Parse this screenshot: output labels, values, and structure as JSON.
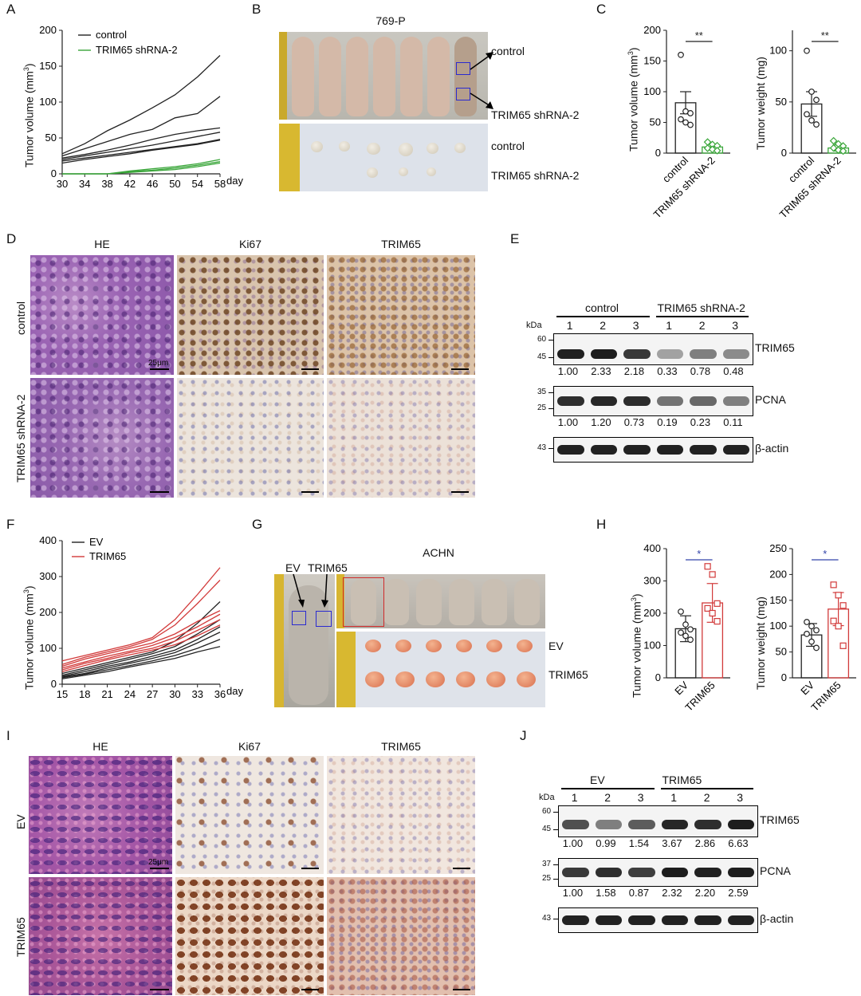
{
  "panels": {
    "A": "A",
    "B": "B",
    "C": "C",
    "D": "D",
    "E": "E",
    "F": "F",
    "G": "G",
    "H": "H",
    "I": "I",
    "J": "J"
  },
  "panelA": {
    "ylabel_main": "Tumor volume (mm",
    "ylabel_sup": "3",
    "ylabel_close": ")",
    "xunit": "day",
    "legend": [
      "control",
      "TRIM65 shRNA-2"
    ],
    "colors": {
      "control": "#222222",
      "shrna": "#3aa63a"
    },
    "yticks": [
      "0",
      "50",
      "100",
      "150",
      "200"
    ],
    "xticks": [
      "30",
      "34",
      "38",
      "42",
      "46",
      "50",
      "54",
      "58"
    ]
  },
  "chart_data": [
    {
      "type": "line",
      "panel": "A",
      "x": [
        30,
        34,
        38,
        42,
        46,
        50,
        54,
        58
      ],
      "xlabel": "day",
      "ylabel": "Tumor volume (mm3)",
      "ylim": [
        0,
        200
      ],
      "xlim": [
        30,
        58
      ],
      "series": [
        {
          "name": "control",
          "values": [
            28,
            42,
            60,
            75,
            92,
            110,
            135,
            165
          ]
        },
        {
          "name": "control",
          "values": [
            25,
            35,
            45,
            55,
            62,
            78,
            84,
            108
          ]
        },
        {
          "name": "control",
          "values": [
            22,
            27,
            33,
            40,
            48,
            55,
            60,
            64
          ]
        },
        {
          "name": "control",
          "values": [
            20,
            25,
            30,
            35,
            40,
            46,
            52,
            58
          ]
        },
        {
          "name": "control",
          "values": [
            18,
            22,
            26,
            30,
            34,
            38,
            42,
            48
          ]
        },
        {
          "name": "control",
          "values": [
            15,
            20,
            24,
            28,
            33,
            37,
            41,
            47
          ]
        },
        {
          "name": "TRIM65 shRNA-2",
          "values": [
            0,
            0,
            0,
            4,
            7,
            10,
            14,
            20
          ]
        },
        {
          "name": "TRIM65 shRNA-2",
          "values": [
            0,
            0,
            0,
            3,
            5,
            8,
            12,
            17
          ]
        },
        {
          "name": "TRIM65 shRNA-2",
          "values": [
            0,
            0,
            0,
            2,
            4,
            6,
            10,
            15
          ]
        }
      ]
    },
    {
      "type": "bar",
      "panel": "C-volume",
      "categories": [
        "control",
        "TRIM65 shRNA-2"
      ],
      "values": [
        82,
        10
      ],
      "errors": [
        18,
        5
      ],
      "points": [
        [
          160,
          68,
          65,
          55,
          50,
          46
        ],
        [
          18,
          14,
          12,
          8,
          6,
          4
        ]
      ],
      "ylabel": "Tumor volume (mm3)",
      "ylim": [
        0,
        200
      ],
      "yticks": [
        "0",
        "50",
        "100",
        "150",
        "200"
      ],
      "significance": "**"
    },
    {
      "type": "bar",
      "panel": "C-weight",
      "categories": [
        "control",
        "TRIM65 shRNA-2"
      ],
      "values": [
        48,
        5
      ],
      "errors": [
        12,
        3
      ],
      "points": [
        [
          100,
          60,
          52,
          38,
          32,
          28
        ],
        [
          12,
          9,
          7,
          5,
          3,
          2
        ]
      ],
      "ylabel": "Tumor weight (mg)",
      "ylim": [
        0,
        120
      ],
      "yticks": [
        "0",
        "50",
        "100"
      ],
      "significance": "**"
    },
    {
      "type": "line",
      "panel": "F",
      "x": [
        15,
        18,
        21,
        24,
        27,
        30,
        33,
        36
      ],
      "xlabel": "day",
      "ylabel": "Tumor volume (mm3)",
      "ylim": [
        0,
        400
      ],
      "xlim": [
        15,
        36
      ],
      "series": [
        {
          "name": "EV",
          "values": [
            30,
            45,
            60,
            75,
            90,
            120,
            170,
            230
          ]
        },
        {
          "name": "EV",
          "values": [
            25,
            40,
            55,
            70,
            85,
            105,
            140,
            180
          ]
        },
        {
          "name": "EV",
          "values": [
            22,
            35,
            50,
            62,
            78,
            95,
            125,
            160
          ]
        },
        {
          "name": "EV",
          "values": [
            20,
            30,
            45,
            58,
            72,
            88,
            115,
            145
          ]
        },
        {
          "name": "EV",
          "values": [
            18,
            28,
            40,
            52,
            65,
            80,
            100,
            125
          ]
        },
        {
          "name": "EV",
          "values": [
            15,
            25,
            35,
            48,
            60,
            72,
            90,
            105
          ]
        },
        {
          "name": "TRIM65",
          "values": [
            65,
            80,
            95,
            110,
            130,
            180,
            250,
            325
          ]
        },
        {
          "name": "TRIM65",
          "values": [
            55,
            75,
            90,
            105,
            125,
            165,
            225,
            290
          ]
        },
        {
          "name": "TRIM65",
          "values": [
            50,
            70,
            85,
            100,
            115,
            140,
            175,
            205
          ]
        },
        {
          "name": "TRIM65",
          "values": [
            45,
            62,
            78,
            92,
            108,
            130,
            160,
            195
          ]
        },
        {
          "name": "TRIM65",
          "values": [
            40,
            58,
            72,
            88,
            100,
            120,
            150,
            180
          ]
        },
        {
          "name": "TRIM65",
          "values": [
            35,
            52,
            68,
            82,
            95,
            110,
            135,
            165
          ]
        }
      ]
    },
    {
      "type": "bar",
      "panel": "H-volume",
      "categories": [
        "EV",
        "TRIM65"
      ],
      "values": [
        152,
        232
      ],
      "errors": [
        40,
        60
      ],
      "points": [
        [
          205,
          165,
          150,
          140,
          130,
          118
        ],
        [
          345,
          320,
          230,
          215,
          200,
          175
        ]
      ],
      "ylabel": "Tumor volume (mm3)",
      "ylim": [
        0,
        400
      ],
      "yticks": [
        "0",
        "100",
        "200",
        "300",
        "400"
      ],
      "significance": "*"
    },
    {
      "type": "bar",
      "panel": "H-weight",
      "categories": [
        "EV",
        "TRIM65"
      ],
      "values": [
        83,
        133
      ],
      "errors": [
        22,
        32
      ],
      "points": [
        [
          108,
          100,
          92,
          85,
          70,
          58
        ],
        [
          180,
          160,
          140,
          110,
          100,
          62
        ]
      ],
      "ylabel": "Tumor weight (mg)",
      "ylim": [
        0,
        250
      ],
      "yticks": [
        "0",
        "50",
        "100",
        "150",
        "200",
        "250"
      ],
      "significance": "*"
    }
  ],
  "panelB": {
    "title": "769-P",
    "label_control": "control",
    "label_shrna": "TRIM65 shRNA-2",
    "label_control2": "control",
    "label_shrna2": "TRIM65 shRNA-2"
  },
  "panelC": {
    "vol_ylabel_main": "Tumor volume (mm",
    "vol_ylabel_sup": "3",
    "vol_ylabel_close": ")",
    "wt_ylabel": "Tumor weight (mg)",
    "cat_control": "control",
    "cat_shrna": "TRIM65 shRNA-2",
    "star": "**",
    "colors": {
      "control": "#222222",
      "shrna": "#3aa63a"
    }
  },
  "panelD": {
    "cols": [
      "HE",
      "Ki67",
      "TRIM65"
    ],
    "rows": [
      "control",
      "TRIM65 shRNA-2"
    ],
    "scale": "25μm"
  },
  "panelE": {
    "kda": "kDa",
    "group1": "control",
    "group2": "TRIM65 shRNA-2",
    "lanes": [
      "1",
      "2",
      "3",
      "1",
      "2",
      "3"
    ],
    "blots": [
      {
        "name": "TRIM65",
        "markers": [
          "60",
          "45"
        ],
        "values": [
          "1.00",
          "2.33",
          "2.18",
          "0.33",
          "0.78",
          "0.48"
        ]
      },
      {
        "name": "PCNA",
        "markers": [
          "35",
          "25"
        ],
        "values": [
          "1.00",
          "1.20",
          "0.73",
          "0.19",
          "0.23",
          "0.11"
        ]
      },
      {
        "name": "β-actin",
        "markers": [
          "43"
        ],
        "values": []
      }
    ]
  },
  "panelF": {
    "ylabel_main": "Tumor volume (mm",
    "ylabel_sup": "3",
    "ylabel_close": ")",
    "xunit": "day",
    "legend": [
      "EV",
      "TRIM65"
    ],
    "colors": {
      "ev": "#222222",
      "trim": "#d23a3a"
    },
    "yticks": [
      "0",
      "100",
      "200",
      "300",
      "400"
    ],
    "xticks": [
      "15",
      "18",
      "21",
      "24",
      "27",
      "30",
      "33",
      "36"
    ]
  },
  "panelG": {
    "title": "ACHN",
    "arrow_ev": "EV",
    "arrow_trim": "TRIM65",
    "row_ev": "EV",
    "row_trim": "TRIM65"
  },
  "panelH": {
    "vol_ylabel_main": "Tumor volume (mm",
    "vol_ylabel_sup": "3",
    "vol_ylabel_close": ")",
    "wt_ylabel": "Tumor weight (mg)",
    "cat_ev": "EV",
    "cat_trim": "TRIM65",
    "star": "*",
    "colors": {
      "ev": "#222222",
      "trim": "#d23a3a",
      "sig": "#3344aa"
    }
  },
  "panelI": {
    "cols": [
      "HE",
      "Ki67",
      "TRIM65"
    ],
    "rows": [
      "EV",
      "TRIM65"
    ],
    "scale": "25μm"
  },
  "panelJ": {
    "kda": "kDa",
    "group1": "EV",
    "group2": "TRIM65",
    "lanes": [
      "1",
      "2",
      "3",
      "1",
      "2",
      "3"
    ],
    "blots": [
      {
        "name": "TRIM65",
        "markers": [
          "60",
          "45"
        ],
        "values": [
          "1.00",
          "0.99",
          "1.54",
          "3.67",
          "2.86",
          "6.63"
        ]
      },
      {
        "name": "PCNA",
        "markers": [
          "37",
          "25"
        ],
        "values": [
          "1.00",
          "1.58",
          "0.87",
          "2.32",
          "2.20",
          "2.59"
        ]
      },
      {
        "name": "β-actin",
        "markers": [
          "43"
        ],
        "values": []
      }
    ]
  }
}
